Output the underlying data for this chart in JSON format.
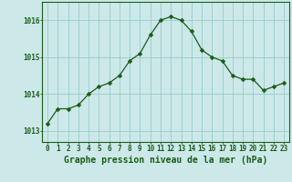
{
  "x": [
    0,
    1,
    2,
    3,
    4,
    5,
    6,
    7,
    8,
    9,
    10,
    11,
    12,
    13,
    14,
    15,
    16,
    17,
    18,
    19,
    20,
    21,
    22,
    23
  ],
  "y": [
    1013.2,
    1013.6,
    1013.6,
    1013.7,
    1014.0,
    1014.2,
    1014.3,
    1014.5,
    1014.9,
    1015.1,
    1015.6,
    1016.0,
    1016.1,
    1016.0,
    1015.7,
    1015.2,
    1015.0,
    1014.9,
    1014.5,
    1014.4,
    1014.4,
    1014.1,
    1014.2,
    1014.3
  ],
  "line_color": "#1a5c1a",
  "marker": "D",
  "marker_size": 2.5,
  "bg_color": "#cce8e8",
  "grid_color": "#99cccc",
  "axis_color": "#1a5c1a",
  "xlabel": "Graphe pression niveau de la mer (hPa)",
  "yticks": [
    1013,
    1014,
    1015,
    1016
  ],
  "ylim": [
    1012.7,
    1016.5
  ],
  "xlim": [
    -0.5,
    23.5
  ],
  "tick_fontsize": 5.5,
  "xlabel_fontsize": 7.0
}
